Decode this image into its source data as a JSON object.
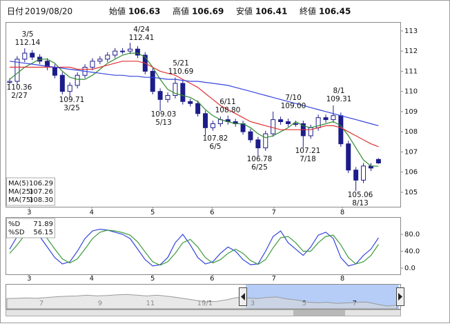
{
  "header": {
    "items": [
      {
        "label": "日付",
        "value": "2019/08/20"
      },
      {
        "label": "始値",
        "value": 106.63
      },
      {
        "label": "高値",
        "value": 106.69,
        "color": "#e02020"
      },
      {
        "label": "安値",
        "value": 106.41,
        "color": "#1f8a1f"
      },
      {
        "label": "終値",
        "value": 106.45
      }
    ]
  },
  "chart_data": [
    {
      "type": "candlestick",
      "color": "#1c1c8a",
      "grid": false,
      "legend": "lower left",
      "xlim": [
        -0.55,
        51.9
      ],
      "xticks": [
        {
          "value": 2.6,
          "label": "3"
        },
        {
          "value": 10.9,
          "label": "4"
        },
        {
          "value": 19.0,
          "label": "5"
        },
        {
          "value": 26.9,
          "label": "6"
        },
        {
          "value": 35.1,
          "label": "7"
        },
        {
          "value": 44.2,
          "label": "8"
        }
      ],
      "ylim": [
        104.28,
        113.44
      ],
      "yticks": [
        105,
        106,
        107,
        108,
        109,
        110,
        111,
        112,
        113
      ],
      "open": [
        110.45,
        110.5,
        111.6,
        111.9,
        111.7,
        111.5,
        111.2,
        110.8,
        110.0,
        110.3,
        110.8,
        111.2,
        111.5,
        111.6,
        111.8,
        112.0,
        112.0,
        112.1,
        111.8,
        111.0,
        110.0,
        109.6,
        109.8,
        110.4,
        109.5,
        109.4,
        108.9,
        108.2,
        108.4,
        108.6,
        108.5,
        108.4,
        108.0,
        107.6,
        107.2,
        107.9,
        108.6,
        108.5,
        108.4,
        108.4,
        107.8,
        108.2,
        108.7,
        108.6,
        108.8,
        107.4,
        106.1,
        105.6,
        106.3,
        106.63
      ],
      "high": [
        110.65,
        111.75,
        112.14,
        112.05,
        111.85,
        111.65,
        111.35,
        110.95,
        110.45,
        110.95,
        111.35,
        111.65,
        111.75,
        111.95,
        112.15,
        112.15,
        112.41,
        112.25,
        111.95,
        111.15,
        110.15,
        109.95,
        110.69,
        110.55,
        109.65,
        109.55,
        109.05,
        108.55,
        108.75,
        108.8,
        108.65,
        108.55,
        108.15,
        107.75,
        108.05,
        109.0,
        108.75,
        108.65,
        108.55,
        108.55,
        108.35,
        108.85,
        108.85,
        109.31,
        108.95,
        107.55,
        106.25,
        106.45,
        106.45,
        106.69
      ],
      "low": [
        110.36,
        110.35,
        111.45,
        111.55,
        111.35,
        111.05,
        110.65,
        109.85,
        109.71,
        110.15,
        110.65,
        111.05,
        111.35,
        111.45,
        111.65,
        111.85,
        111.85,
        111.65,
        110.85,
        109.85,
        109.03,
        109.45,
        109.65,
        109.35,
        109.25,
        108.75,
        107.82,
        108.05,
        108.25,
        108.35,
        108.25,
        107.85,
        107.45,
        106.78,
        107.05,
        107.75,
        108.35,
        108.25,
        108.25,
        107.21,
        107.65,
        108.05,
        108.45,
        108.45,
        107.25,
        105.95,
        105.06,
        105.45,
        106.05,
        106.41
      ],
      "close": [
        110.5,
        111.6,
        111.9,
        111.7,
        111.5,
        111.2,
        110.8,
        110.0,
        110.3,
        110.8,
        111.2,
        111.5,
        111.6,
        111.8,
        112.0,
        112.0,
        112.1,
        111.8,
        111.0,
        110.0,
        109.6,
        109.8,
        110.4,
        109.5,
        109.4,
        108.9,
        108.2,
        108.4,
        108.6,
        108.5,
        108.4,
        108.0,
        107.6,
        107.2,
        107.9,
        108.6,
        108.5,
        108.4,
        108.4,
        107.8,
        108.2,
        108.7,
        108.6,
        108.8,
        107.4,
        106.1,
        105.6,
        106.3,
        106.2,
        106.45
      ],
      "series": [
        {
          "name": "MA(5)",
          "color": "#2e8b2e",
          "value_label": "106.29",
          "values": [
            110.6,
            110.9,
            111.2,
            111.4,
            111.6,
            111.6,
            111.4,
            111.0,
            110.7,
            110.6,
            110.6,
            110.8,
            111.1,
            111.4,
            111.6,
            111.8,
            111.9,
            111.9,
            111.7,
            111.2,
            110.6,
            110.1,
            109.9,
            109.8,
            109.7,
            109.5,
            109.1,
            108.8,
            108.6,
            108.5,
            108.4,
            108.4,
            108.2,
            107.9,
            107.7,
            107.8,
            108.0,
            108.2,
            108.5,
            108.3,
            108.2,
            108.3,
            108.4,
            108.5,
            108.3,
            107.8,
            107.2,
            106.6,
            106.3,
            106.29
          ]
        },
        {
          "name": "MA(25)",
          "color": "#e03030",
          "value_label": "107.26",
          "values": [
            111.2,
            111.2,
            111.2,
            111.2,
            111.2,
            111.2,
            111.2,
            111.2,
            111.2,
            111.1,
            111.1,
            111.1,
            111.2,
            111.3,
            111.4,
            111.5,
            111.5,
            111.5,
            111.4,
            111.2,
            111.0,
            110.9,
            110.8,
            110.6,
            110.4,
            110.2,
            109.9,
            109.6,
            109.3,
            109.1,
            108.9,
            108.7,
            108.5,
            108.4,
            108.3,
            108.2,
            108.1,
            108.1,
            108.1,
            108.1,
            108.1,
            108.2,
            108.3,
            108.3,
            108.2,
            108.0,
            107.8,
            107.6,
            107.4,
            107.26
          ]
        },
        {
          "name": "MA(75)",
          "color": "#3344dd",
          "value_label": "108.30",
          "values": [
            111.5,
            111.45,
            111.4,
            111.35,
            111.3,
            111.25,
            111.2,
            111.15,
            111.1,
            111.05,
            111.0,
            110.95,
            110.9,
            110.85,
            110.8,
            110.8,
            110.75,
            110.75,
            110.7,
            110.7,
            110.65,
            110.6,
            110.6,
            110.55,
            110.5,
            110.5,
            110.45,
            110.4,
            110.35,
            110.3,
            110.2,
            110.1,
            110.0,
            109.9,
            109.8,
            109.7,
            109.6,
            109.5,
            109.4,
            109.3,
            109.2,
            109.1,
            109.0,
            108.9,
            108.8,
            108.7,
            108.6,
            108.5,
            108.4,
            108.3
          ]
        }
      ],
      "annotations": [
        {
          "lines": [
            "3/5",
            "112.14"
          ]
        },
        {
          "lines": [
            "110.36",
            "2/27"
          ]
        },
        {
          "lines": [
            "109.71",
            "3/25"
          ]
        },
        {
          "lines": [
            "4/24",
            "112.41"
          ]
        },
        {
          "lines": [
            "5/21",
            "110.69"
          ]
        },
        {
          "lines": [
            "109.03",
            "5/13"
          ]
        },
        {
          "lines": [
            "6/11",
            "108.80"
          ]
        },
        {
          "lines": [
            "107.82",
            "6/5"
          ]
        },
        {
          "lines": [
            "7/10",
            "109.00"
          ]
        },
        {
          "lines": [
            "106.78",
            "6/25"
          ]
        },
        {
          "lines": [
            "107.21",
            "7/18"
          ]
        },
        {
          "lines": [
            "8/1",
            "109.31"
          ]
        },
        {
          "lines": [
            "105.06",
            "8/13"
          ]
        }
      ]
    },
    {
      "type": "line",
      "grid": false,
      "legend": "upper left",
      "xlim": [
        -0.55,
        51.9
      ],
      "xticks": [
        {
          "value": 2.6,
          "label": "3"
        },
        {
          "value": 10.9,
          "label": "4"
        },
        {
          "value": 19.0,
          "label": "5"
        },
        {
          "value": 26.9,
          "label": "6"
        },
        {
          "value": 35.1,
          "label": "7"
        },
        {
          "value": 44.2,
          "label": "8"
        }
      ],
      "ylim": [
        -14.7,
        120.8
      ],
      "yticks": [
        {
          "value": 0,
          "label": "0.0"
        },
        {
          "value": 40,
          "label": "40.0"
        },
        {
          "value": 80,
          "label": "80.0"
        }
      ],
      "series": [
        {
          "name": "%D",
          "color": "#3344dd",
          "value_label": "71.89",
          "values": [
            45,
            75,
            90,
            88,
            75,
            50,
            25,
            10,
            15,
            40,
            70,
            88,
            92,
            90,
            85,
            80,
            70,
            45,
            20,
            5,
            8,
            25,
            60,
            80,
            55,
            25,
            10,
            15,
            35,
            50,
            40,
            20,
            8,
            10,
            40,
            75,
            88,
            60,
            45,
            30,
            50,
            78,
            85,
            70,
            25,
            5,
            10,
            30,
            45,
            71.89
          ]
        },
        {
          "name": "%SD",
          "color": "#3a9a3a",
          "value_label": "56.15",
          "values": [
            35,
            55,
            78,
            88,
            85,
            70,
            45,
            22,
            12,
            22,
            45,
            70,
            85,
            90,
            88,
            84,
            78,
            62,
            38,
            15,
            7,
            15,
            35,
            60,
            68,
            50,
            25,
            12,
            20,
            35,
            45,
            35,
            18,
            9,
            20,
            48,
            72,
            75,
            60,
            40,
            40,
            60,
            75,
            78,
            55,
            25,
            10,
            15,
            30,
            56.15
          ]
        }
      ]
    },
    {
      "type": "area",
      "color": "#9a9a9a",
      "xlim": [
        -0.14,
        39.35
      ],
      "xticks": [
        {
          "value": 3.45,
          "label": "7"
        },
        {
          "value": 9.31,
          "label": "9"
        },
        {
          "value": 14.35,
          "label": "11"
        },
        {
          "value": 19.8,
          "label": "19/1"
        },
        {
          "value": 24.57,
          "label": "3"
        },
        {
          "value": 29.74,
          "label": "5"
        },
        {
          "value": 34.78,
          "label": "7"
        }
      ],
      "ylim": [
        104,
        120
      ],
      "values": [
        110.8,
        111.0,
        111.2,
        111.0,
        111.5,
        112.0,
        112.3,
        112.5,
        113.0,
        112.6,
        112.8,
        113.3,
        113.5,
        113.0,
        112.5,
        113.0,
        112.3,
        111.5,
        110.5,
        109.5,
        108.6,
        108.9,
        110.0,
        111.5,
        111.2,
        110.8,
        111.5,
        111.8,
        110.5,
        109.8,
        108.5,
        108.0,
        108.3,
        107.6,
        107.9,
        108.3,
        108.5,
        107.0,
        105.8,
        106.4
      ]
    }
  ]
}
